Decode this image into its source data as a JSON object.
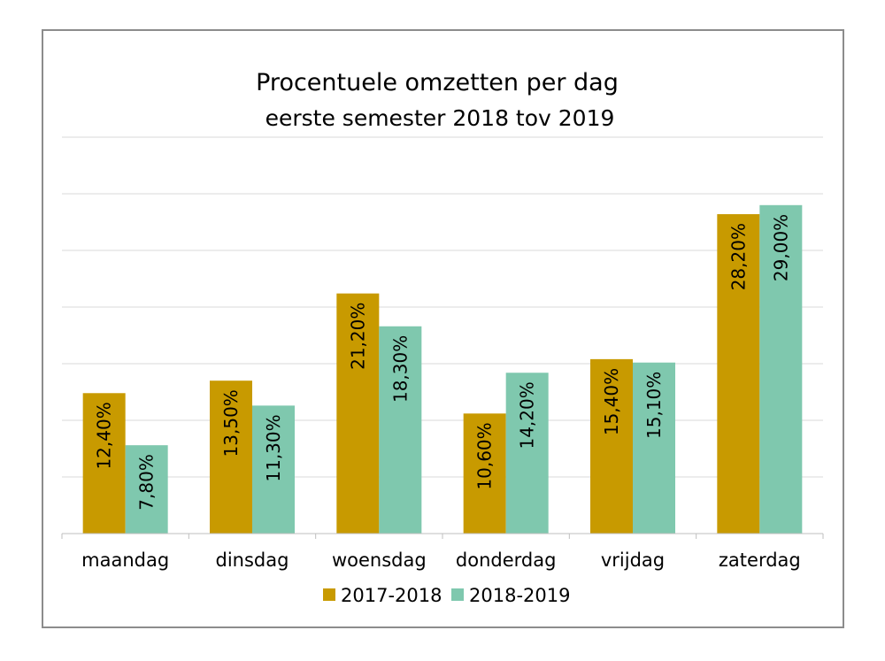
{
  "chart_data": {
    "type": "bar",
    "title": "Procentuele omzetten per dag",
    "subtitle": "eerste semester 2018 tov 2019",
    "categories": [
      "maandag",
      "dinsdag",
      "woensdag",
      "donderdag",
      "vrijdag",
      "zaterdag"
    ],
    "series": [
      {
        "name": "2017-2018",
        "color": "#c89a00",
        "values": [
          12.4,
          13.5,
          21.2,
          10.6,
          15.4,
          28.2
        ],
        "labels": [
          "12,40%",
          "13,50%",
          "21,20%",
          "10,60%",
          "15,40%",
          "28,20%"
        ]
      },
      {
        "name": "2018-2019",
        "color": "#7fc8ae",
        "values": [
          7.8,
          11.3,
          18.3,
          14.2,
          15.1,
          29.0
        ],
        "labels": [
          "7,80%",
          "11,30%",
          "18,30%",
          "14,20%",
          "15,10%",
          "29,00%"
        ]
      }
    ],
    "ylim": [
      0,
      35
    ],
    "grid": true,
    "legend": "bottom"
  }
}
